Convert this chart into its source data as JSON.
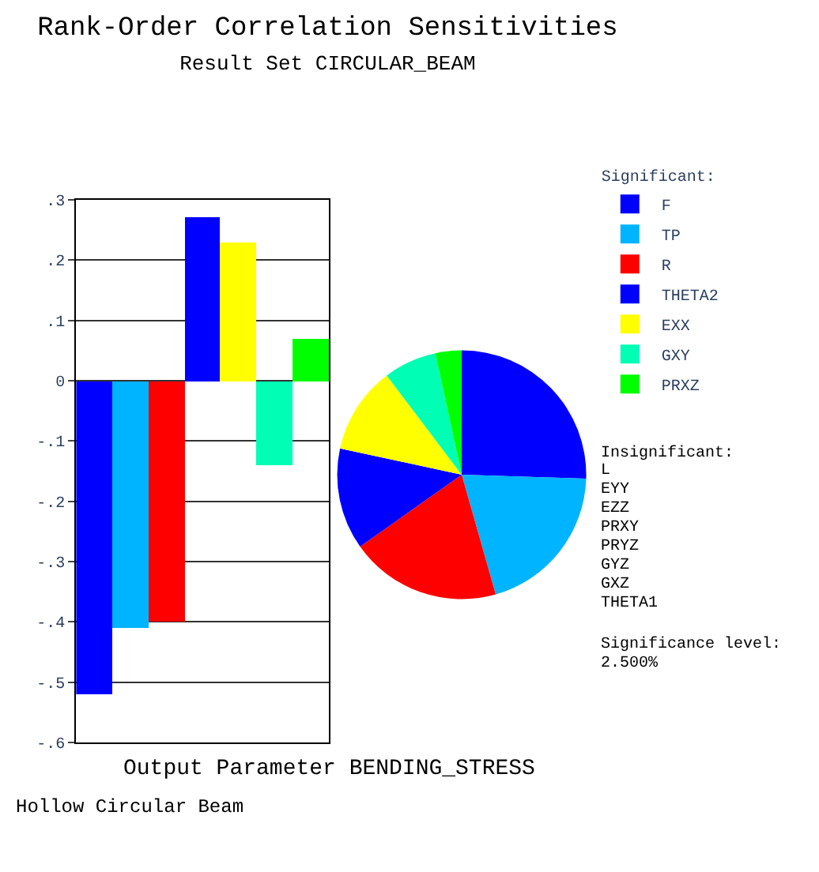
{
  "chart_data": [
    {
      "type": "bar",
      "title": "Rank-Order Correlation Sensitivities",
      "subtitle": "Result Set CIRCULAR_BEAM",
      "categories": [
        null,
        null,
        null,
        null,
        null,
        null,
        null
      ],
      "values": [
        -0.52,
        -0.41,
        -0.4,
        0.27,
        0.23,
        -0.14,
        0.07
      ],
      "colors": [
        "#0000ff",
        "#00b4ff",
        "#ff0000",
        "#0000ff",
        "#ffff00",
        "#00ffb4",
        "#00ff00"
      ],
      "ylim": [
        -0.6,
        0.3
      ],
      "yticks": [
        {
          "value": 0.3,
          "label": ".3"
        },
        {
          "value": 0.2,
          "label": ".2"
        },
        {
          "value": 0.1,
          "label": ".1"
        },
        0,
        {
          "value": -0.1,
          "label": "-.1"
        },
        {
          "value": -0.2,
          "label": "-.2"
        },
        {
          "value": -0.3,
          "label": "-.3"
        },
        {
          "value": -0.4,
          "label": "-.4"
        },
        {
          "value": -0.5,
          "label": "-.5"
        },
        {
          "value": -0.6,
          "label": "-.6"
        }
      ],
      "grid": "y",
      "tick_labels": "y",
      "annotations": [
        "Output Parameter BENDING_STRESS",
        "Hollow Circular Beam"
      ]
    },
    {
      "type": "pie",
      "legend_title": "Significant:",
      "categories": [
        "F",
        "TP",
        "R",
        "THETA2",
        "EXX",
        "GXY",
        "PRXZ"
      ],
      "values": [
        25.5,
        20.1,
        19.6,
        13.2,
        11.3,
        6.9,
        3.4
      ],
      "colors": [
        "#0000ff",
        "#00b4ff",
        "#ff0000",
        "#0000ff",
        "#ffff00",
        "#00ffb4",
        "#00ff00"
      ],
      "legend": "right",
      "annotations": [
        "Insignificant:",
        "L",
        "EYY",
        "EZZ",
        "PRXY",
        "PRYZ",
        "GYZ",
        "GXZ",
        "THETA1",
        "Significance level:",
        "2.500%"
      ]
    }
  ]
}
